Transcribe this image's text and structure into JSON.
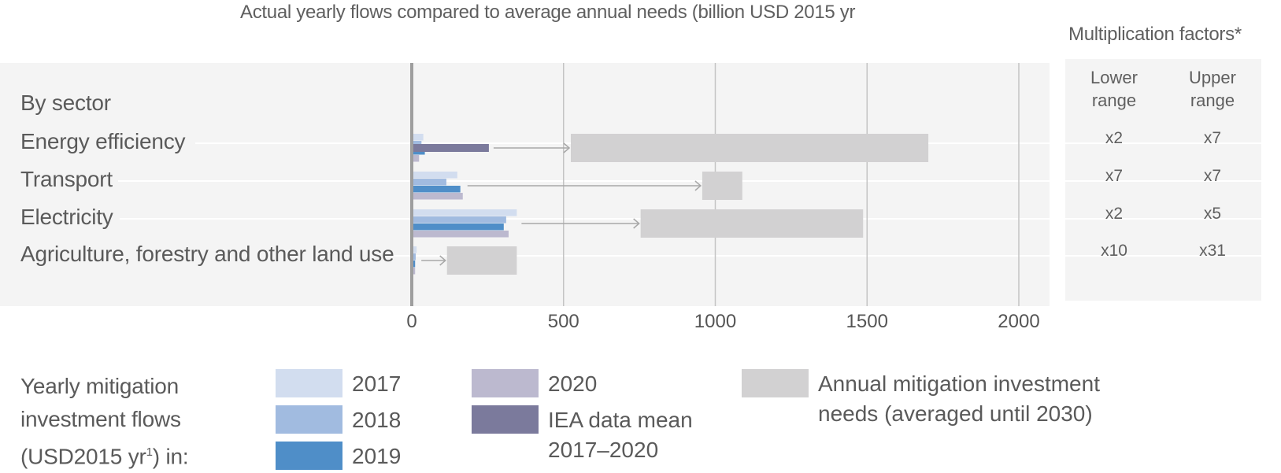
{
  "chart_data": {
    "type": "bar",
    "title": "Actual yearly flows compared to average annual needs (billion USD 2015 yr",
    "group_label": "By sector",
    "categories": [
      "Energy efficiency",
      "Transport",
      "Electricity",
      "Agriculture, forestry and other land use"
    ],
    "xlim": [
      0,
      2000
    ],
    "xticks": [
      0,
      500,
      1000,
      1500,
      2000
    ],
    "series": [
      {
        "name": "2017",
        "color": "#d2ddef",
        "values": [
          38,
          150,
          346,
          16
        ]
      },
      {
        "name": "2018",
        "color": "#a1bbe0",
        "values": [
          32,
          114,
          311,
          13
        ]
      },
      {
        "name": "2019",
        "color": "#4f8ec8",
        "values": [
          43,
          160,
          303,
          11
        ]
      },
      {
        "name": "2020",
        "color": "#bcb9cf",
        "values": [
          24,
          168,
          319,
          11
        ]
      },
      {
        "name": "IEA data mean 2017–2020",
        "color": "#7b7a9c",
        "values": [
          254,
          null,
          null,
          null
        ]
      }
    ],
    "needs_ranges": {
      "name": "Annual mitigation investment needs (averaged until 2030)",
      "color": "#d2d1d2",
      "values": [
        [
          524,
          1702
        ],
        [
          957,
          1089
        ],
        [
          754,
          1487
        ],
        [
          116,
          346
        ]
      ]
    },
    "grid": true
  },
  "multiplication_factors": {
    "title": "Multiplication factors*",
    "columns": [
      "Lower range",
      "Upper range"
    ],
    "rows": [
      {
        "lower": "x2",
        "upper": "x7"
      },
      {
        "lower": "x7",
        "upper": "x7"
      },
      {
        "lower": "x2",
        "upper": "x5"
      },
      {
        "lower": "x10",
        "upper": "x31"
      }
    ]
  },
  "legend": {
    "title_lines": [
      "Yearly mitigation",
      "investment flows"
    ],
    "title_line3_prefix": "(USD2015 yr",
    "title_line3_sup": "1",
    "title_line3_suffix": ") in:",
    "items": [
      {
        "label": "2017",
        "color": "#d2ddef"
      },
      {
        "label": "2018",
        "color": "#a1bbe0"
      },
      {
        "label": "2019",
        "color": "#4f8ec8"
      },
      {
        "label": "2020",
        "color": "#bcb9cf"
      },
      {
        "label_lines": [
          "IEA data mean",
          "2017–2020"
        ],
        "color": "#7b7a9c"
      },
      {
        "label_lines": [
          "Annual mitigation investment",
          "needs (averaged until 2030)"
        ],
        "color": "#d2d1d2"
      }
    ]
  }
}
